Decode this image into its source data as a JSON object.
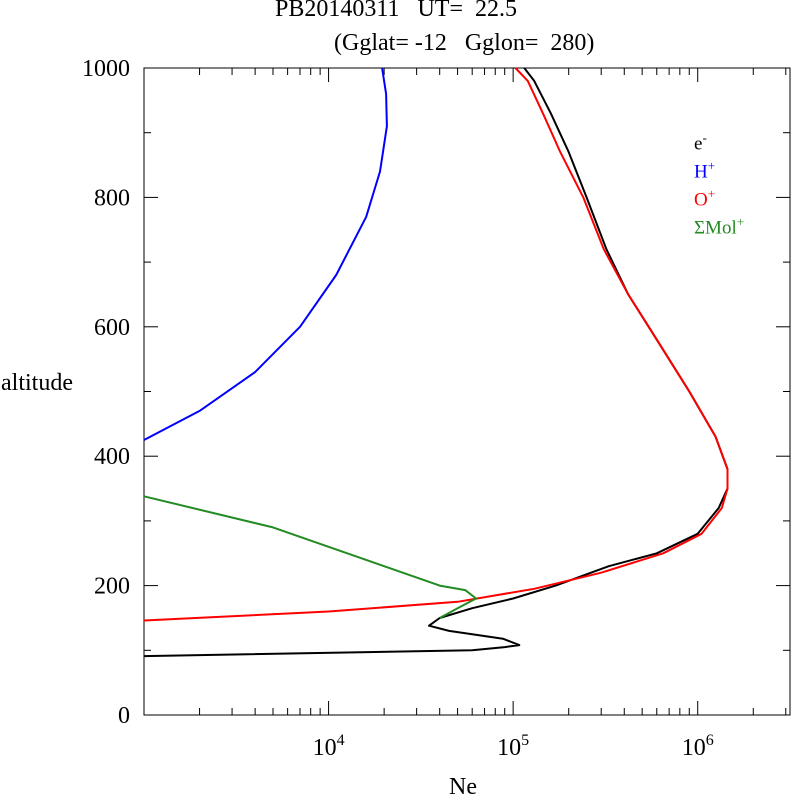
{
  "header": {
    "title_line1": "PB20140311   UT=  22.5",
    "title_line2": "(Gglat= -12   Gglon=  280)"
  },
  "legend": [
    {
      "base": "e",
      "sup": "-",
      "color": "#000000"
    },
    {
      "base": "H",
      "sup": "+",
      "color": "#0000ff"
    },
    {
      "base": "O",
      "sup": "+",
      "color": "#ff0000"
    },
    {
      "base": "ΣMol",
      "sup": "+",
      "color": "#228b22"
    }
  ],
  "chart_data": {
    "type": "line",
    "xlabel": "Ne",
    "ylabel": "altitude",
    "xscale": "log",
    "xlim": [
      1000,
      3162278
    ],
    "ylim": [
      0,
      1000
    ],
    "y_ticks": [
      0,
      200,
      400,
      600,
      800,
      1000
    ],
    "x_tick_labels": [
      {
        "base": "10",
        "exp": "4",
        "value": 10000
      },
      {
        "base": "10",
        "exp": "5",
        "value": 100000
      },
      {
        "base": "10",
        "exp": "6",
        "value": 1000000
      }
    ],
    "grid": false,
    "legend_position": "top-right",
    "series": [
      {
        "id": "electron",
        "color": "#000000",
        "points": [
          [
            1000,
            91
          ],
          [
            60000,
            100
          ],
          [
            90000,
            105
          ],
          [
            108000,
            108
          ],
          [
            88000,
            118
          ],
          [
            45000,
            130
          ],
          [
            35000,
            138
          ],
          [
            40000,
            150
          ],
          [
            60000,
            165
          ],
          [
            100000,
            180
          ],
          [
            170000,
            200
          ],
          [
            330000,
            230
          ],
          [
            600000,
            250
          ],
          [
            1000000,
            280
          ],
          [
            1300000,
            320
          ],
          [
            1450000,
            350
          ],
          [
            1450000,
            380
          ],
          [
            1250000,
            430
          ],
          [
            900000,
            500
          ],
          [
            600000,
            580
          ],
          [
            420000,
            650
          ],
          [
            320000,
            720
          ],
          [
            250000,
            800
          ],
          [
            200000,
            870
          ],
          [
            160000,
            930
          ],
          [
            130000,
            980
          ],
          [
            115000,
            1000
          ]
        ]
      },
      {
        "id": "H+",
        "color": "#0000ff",
        "points": [
          [
            1000,
            425
          ],
          [
            2000,
            470
          ],
          [
            4000,
            530
          ],
          [
            7000,
            600
          ],
          [
            11000,
            680
          ],
          [
            16000,
            770
          ],
          [
            19000,
            840
          ],
          [
            20700,
            910
          ],
          [
            20500,
            960
          ],
          [
            19500,
            1000
          ]
        ]
      },
      {
        "id": "O+",
        "color": "#ff0000",
        "points": [
          [
            1000,
            146
          ],
          [
            10000,
            160
          ],
          [
            50000,
            175
          ],
          [
            130000,
            195
          ],
          [
            300000,
            220
          ],
          [
            650000,
            250
          ],
          [
            1050000,
            280
          ],
          [
            1350000,
            320
          ],
          [
            1450000,
            350
          ],
          [
            1450000,
            380
          ],
          [
            1250000,
            430
          ],
          [
            900000,
            500
          ],
          [
            600000,
            580
          ],
          [
            420000,
            650
          ],
          [
            310000,
            720
          ],
          [
            240000,
            800
          ],
          [
            180000,
            870
          ],
          [
            145000,
            930
          ],
          [
            120000,
            980
          ],
          [
            103000,
            1000
          ]
        ]
      },
      {
        "id": "ΣMol+",
        "color": "#228b22",
        "points": [
          [
            1000,
            338
          ],
          [
            5000,
            290
          ],
          [
            20000,
            230
          ],
          [
            40000,
            200
          ],
          [
            55000,
            193
          ],
          [
            63000,
            180
          ],
          [
            50000,
            165
          ],
          [
            40000,
            150
          ]
        ]
      }
    ]
  }
}
